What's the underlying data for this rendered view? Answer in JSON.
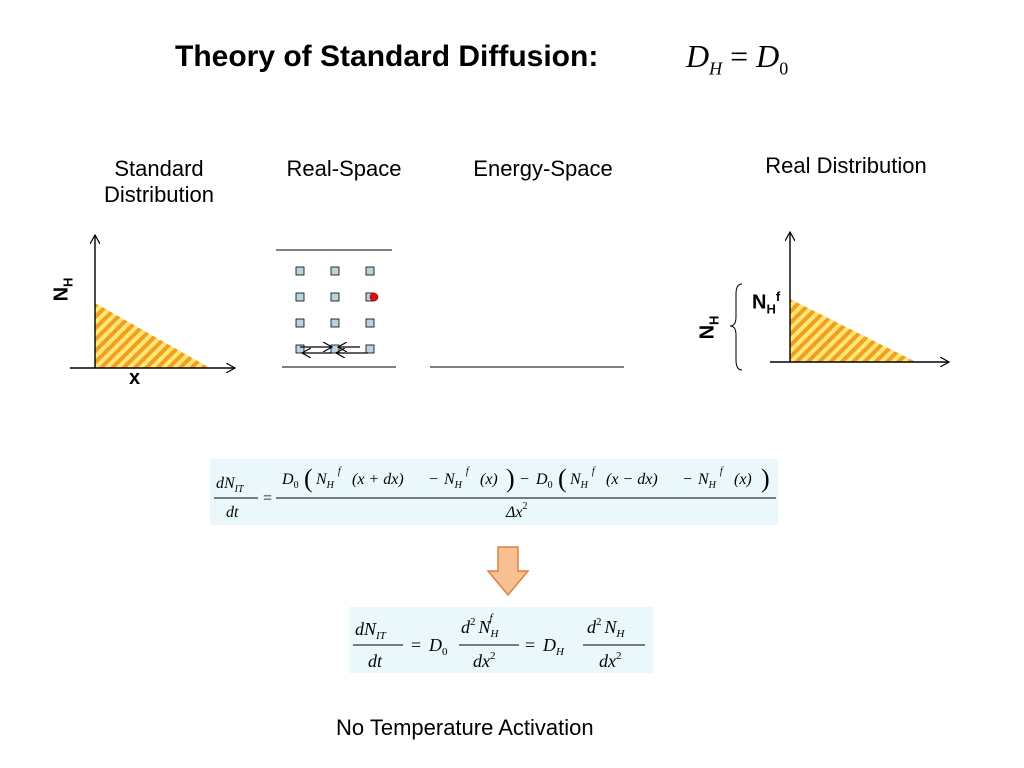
{
  "title": "Theory of Standard Diffusion:",
  "title_equation": {
    "lhs_symbol": "D",
    "lhs_sub": "H",
    "equals": "=",
    "rhs_symbol": "D",
    "rhs_sub": "0"
  },
  "panels": {
    "standard_distribution": {
      "label_line1": "Standard",
      "label_line2": "Distribution",
      "y_axis": "N",
      "y_axis_sub": "H",
      "x_axis": "x"
    },
    "real_space": {
      "label": "Real-Space"
    },
    "energy_space": {
      "label": "Energy-Space"
    },
    "real_distribution": {
      "label": "Real Distribution",
      "y_axis": "N",
      "y_axis_sub": "H",
      "tag": "N",
      "tag_sub": "H",
      "tag_sup": "f"
    }
  },
  "equations": {
    "flux_difference": {
      "lhs_num": "dN",
      "lhs_num_sub": "IT",
      "lhs_den": "dt",
      "equals": "=",
      "num_d0": "D",
      "num_d0_sub": "0",
      "N": "N",
      "N_sub": "H",
      "N_sup": "f",
      "arg_plus": "(x + dx)",
      "arg_minus": "(x − dx)",
      "arg_x": "(x)",
      "minus": "−",
      "den": "Δx",
      "den_sup": "2"
    },
    "diffusion": {
      "lhs_num": "dN",
      "lhs_num_sub": "IT",
      "lhs_den": "dt",
      "equals": "=",
      "D0": "D",
      "D0_sub": "0",
      "DH": "D",
      "DH_sub": "H",
      "frac_num_d": "d",
      "frac_num_pow": "2",
      "frac_N": "N",
      "frac_N_sub": "H",
      "frac_N_sup": "f",
      "frac_den": "dx",
      "frac_den_pow": "2"
    }
  },
  "caption": "No Temperature Activation",
  "colors": {
    "fill_orange": "#f0a020",
    "fill_yellow": "#ffe676",
    "lattice_site": "#b8d4dc",
    "hydrogen_atom": "#e01010",
    "eq_background": "#eaf8fb",
    "arrow_fill": "#f8c090",
    "arrow_stroke": "#e08040"
  }
}
